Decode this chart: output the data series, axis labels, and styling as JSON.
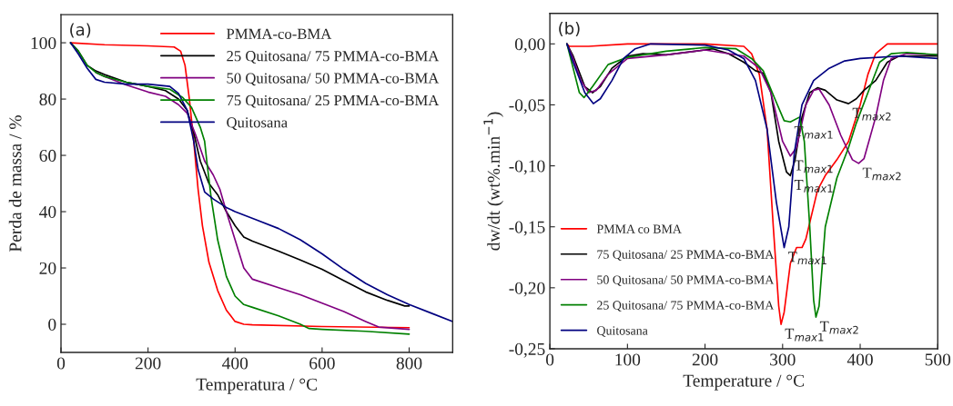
{
  "chart_data": [
    {
      "type": "line",
      "xlabel": "Temperatura / °C",
      "ylabel": "Perda de massa / %",
      "xlim": [
        0,
        900
      ],
      "ylim": [
        -10,
        110
      ],
      "xticks": [
        0,
        200,
        400,
        600,
        800
      ],
      "yticks": [
        0,
        20,
        40,
        60,
        80,
        100
      ],
      "grid": false,
      "legend": "top right",
      "annotations": [
        "(a)"
      ],
      "series": [
        {
          "name": "PMMA-co-BMA",
          "color": "#ff0000",
          "x": [
            22,
            100,
            200,
            260,
            275,
            285,
            295,
            305,
            315,
            325,
            340,
            360,
            380,
            400,
            420,
            440,
            600,
            800
          ],
          "values": [
            100,
            99.3,
            98.9,
            98.5,
            97,
            92,
            80,
            65,
            48,
            35,
            22,
            12,
            5,
            1,
            0,
            -0.2,
            -0.8,
            -1.2
          ]
        },
        {
          "name": "25 Quitosana/ 75 PMMA-co-BMA",
          "color": "#000000",
          "x": [
            22,
            40,
            60,
            80,
            100,
            150,
            200,
            240,
            270,
            290,
            305,
            320,
            340,
            360,
            380,
            400,
            420,
            440,
            500,
            550,
            600,
            650,
            700,
            750,
            790,
            800
          ],
          "values": [
            100,
            97,
            92,
            90,
            88.7,
            86,
            84.5,
            83,
            80,
            76,
            68,
            58,
            50,
            46,
            40,
            35,
            31,
            29.5,
            26,
            22.8,
            19.5,
            15.5,
            11.5,
            8.5,
            6.5,
            6.5
          ]
        },
        {
          "name": "50 Quitosana/ 50 PMMA-co-BMA",
          "color": "#800080",
          "x": [
            80,
            100,
            150,
            200,
            240,
            270,
            290,
            310,
            330,
            350,
            365,
            380,
            400,
            420,
            440,
            500,
            550,
            600,
            650,
            700,
            730,
            800
          ],
          "values": [
            89.5,
            88,
            85,
            82.5,
            81,
            78,
            75,
            67,
            58,
            53,
            48,
            40,
            30,
            20,
            16,
            13,
            10.5,
            7.5,
            4.5,
            1,
            -1,
            -1.8
          ]
        },
        {
          "name": "75 Quitosana/ 25 PMMA-co-BMA",
          "color": "#008000",
          "x": [
            22,
            40,
            60,
            80,
            100,
            150,
            200,
            250,
            280,
            300,
            320,
            330,
            335,
            345,
            360,
            380,
            400,
            420,
            440,
            500,
            550,
            570,
            600,
            700,
            800
          ],
          "values": [
            100,
            97,
            92,
            89.5,
            88,
            86,
            84.5,
            83.5,
            80.5,
            77,
            70,
            65,
            58,
            45,
            30,
            17,
            10,
            7,
            6,
            3,
            0,
            -1.5,
            -1.8,
            -2.5,
            -3.5
          ]
        },
        {
          "name": "Quitosana",
          "color": "#000080",
          "x": [
            22,
            40,
            60,
            80,
            100,
            150,
            200,
            250,
            270,
            290,
            305,
            315,
            330,
            350,
            380,
            400,
            450,
            500,
            550,
            600,
            650,
            700,
            750,
            800,
            850,
            900
          ],
          "values": [
            100,
            96,
            91,
            87,
            86,
            85.3,
            85.3,
            84.5,
            82,
            76,
            65,
            55,
            47,
            44.5,
            41.5,
            40,
            37,
            34,
            30,
            25,
            19.5,
            14.5,
            10.5,
            7,
            4,
            1
          ]
        }
      ]
    },
    {
      "type": "line",
      "xlabel": "Temperature / °C",
      "ylabel": "dw/dt (wt%.min$^{−1}$)",
      "xlim": [
        0,
        500
      ],
      "ylim": [
        -0.25,
        0.025
      ],
      "xticks": [
        0,
        100,
        200,
        300,
        400,
        500
      ],
      "yticks": [
        {
          "value": 0,
          "label": "0,00"
        },
        {
          "value": -0.05,
          "label": "-0,05"
        },
        {
          "value": -0.1,
          "label": "-0,10"
        },
        {
          "value": -0.15,
          "label": "-0,15"
        },
        {
          "value": -0.2,
          "label": "-0,20"
        },
        {
          "value": -0.25,
          "label": "-0,25"
        }
      ],
      "grid": false,
      "legend": "bottom left",
      "annotations": [
        "(b)",
        {
          "text": "T$_{max1}$",
          "x": 310,
          "y": -0.064
        },
        {
          "text": "T$_{max1}$",
          "x": 310,
          "y": -0.092
        },
        {
          "text": "T$_{max1}$",
          "x": 310,
          "y": -0.108
        },
        {
          "text": "T$_{max1}$",
          "x": 302,
          "y": -0.167
        },
        {
          "text": "T$_{max2}$",
          "x": 385,
          "y": -0.049
        },
        {
          "text": "T$_{max2}$",
          "x": 398,
          "y": -0.098
        },
        {
          "text": "T$_{max2}$",
          "x": 343,
          "y": -0.224
        },
        {
          "text": "T$_{max1}$",
          "x": 298,
          "y": -0.23
        }
      ],
      "series": [
        {
          "name": "PMMA co BMA",
          "color": "#ff0000",
          "x": [
            22,
            25,
            50,
            100,
            200,
            250,
            260,
            270,
            280,
            288,
            295,
            298,
            302,
            310,
            318,
            325,
            330,
            345,
            355,
            370,
            385,
            400,
            410,
            420,
            435,
            450,
            500
          ],
          "values": [
            0,
            -0.002,
            -0.002,
            0,
            0,
            -0.002,
            -0.008,
            -0.025,
            -0.07,
            -0.15,
            -0.215,
            -0.23,
            -0.22,
            -0.18,
            -0.167,
            -0.167,
            -0.16,
            -0.12,
            -0.108,
            -0.095,
            -0.08,
            -0.05,
            -0.025,
            -0.008,
            0,
            0,
            0
          ]
        },
        {
          "name": "75 Quitosana/ 25 PMMA-co-BMA",
          "color": "#000000",
          "x": [
            22,
            30,
            45,
            55,
            65,
            80,
            100,
            120,
            150,
            200,
            210,
            230,
            250,
            265,
            275,
            285,
            295,
            305,
            310,
            316,
            325,
            335,
            345,
            355,
            370,
            385,
            395,
            405,
            420,
            435,
            450,
            500
          ],
          "values": [
            0,
            -0.01,
            -0.035,
            -0.04,
            -0.035,
            -0.02,
            -0.01,
            -0.008,
            -0.009,
            -0.005,
            -0.004,
            -0.008,
            -0.015,
            -0.022,
            -0.024,
            -0.04,
            -0.08,
            -0.105,
            -0.108,
            -0.095,
            -0.06,
            -0.04,
            -0.036,
            -0.038,
            -0.046,
            -0.049,
            -0.045,
            -0.038,
            -0.03,
            -0.015,
            -0.01,
            -0.01
          ]
        },
        {
          "name": "50 Quitosana/ 50 PMMA-co-BMA",
          "color": "#800080",
          "x": [
            22,
            30,
            40,
            50,
            60,
            75,
            100,
            150,
            200,
            250,
            270,
            285,
            300,
            310,
            318,
            330,
            340,
            347,
            360,
            375,
            390,
            398,
            405,
            420,
            430,
            440,
            460,
            500
          ],
          "values": [
            0,
            -0.012,
            -0.03,
            -0.04,
            -0.038,
            -0.025,
            -0.012,
            -0.009,
            -0.005,
            -0.01,
            -0.02,
            -0.04,
            -0.08,
            -0.092,
            -0.085,
            -0.05,
            -0.038,
            -0.037,
            -0.05,
            -0.075,
            -0.095,
            -0.098,
            -0.094,
            -0.06,
            -0.03,
            -0.012,
            -0.008,
            -0.009
          ]
        },
        {
          "name": "25 Quitosana/ 75 PMMA-co-BMA",
          "color": "#008000",
          "x": [
            22,
            30,
            38,
            44,
            55,
            75,
            100,
            150,
            200,
            240,
            260,
            275,
            290,
            302,
            310,
            322,
            328,
            335,
            340,
            343,
            347,
            355,
            370,
            385,
            395,
            410,
            425,
            440,
            460,
            500
          ],
          "values": [
            0,
            -0.02,
            -0.04,
            -0.044,
            -0.035,
            -0.017,
            -0.011,
            -0.006,
            -0.003,
            -0.004,
            -0.012,
            -0.022,
            -0.045,
            -0.063,
            -0.064,
            -0.06,
            -0.08,
            -0.15,
            -0.21,
            -0.224,
            -0.215,
            -0.15,
            -0.11,
            -0.085,
            -0.065,
            -0.04,
            -0.015,
            -0.008,
            -0.007,
            -0.009
          ]
        },
        {
          "name": "Quitosana",
          "color": "#000080",
          "x": [
            22,
            30,
            45,
            56,
            65,
            80,
            95,
            110,
            130,
            200,
            230,
            250,
            265,
            280,
            292,
            302,
            308,
            315,
            325,
            340,
            360,
            380,
            400,
            450,
            500
          ],
          "values": [
            0,
            -0.015,
            -0.04,
            -0.049,
            -0.045,
            -0.03,
            -0.012,
            -0.004,
            0,
            -0.001,
            -0.005,
            -0.012,
            -0.03,
            -0.07,
            -0.13,
            -0.167,
            -0.15,
            -0.09,
            -0.05,
            -0.03,
            -0.02,
            -0.014,
            -0.012,
            -0.01,
            -0.012
          ]
        }
      ]
    }
  ]
}
